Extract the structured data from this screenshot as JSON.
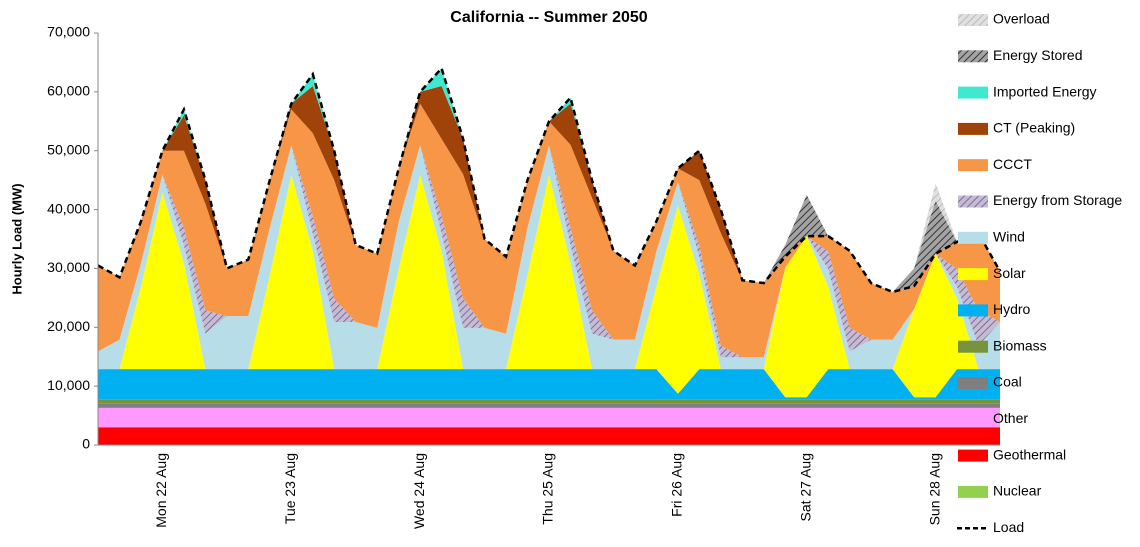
{
  "chart_data": {
    "type": "stacked_area",
    "title": "California -- Summer 2050",
    "y_label": "Hourly Load (MW)",
    "categories": [
      null,
      null,
      null,
      "Mon 22 Aug",
      null,
      null,
      null,
      null,
      null,
      "Tue 23 Aug",
      null,
      null,
      null,
      null,
      null,
      "Wed 24 Aug",
      null,
      null,
      null,
      null,
      null,
      "Thu 25 Aug",
      null,
      null,
      null,
      null,
      null,
      "Fri 26 Aug",
      null,
      null,
      null,
      null,
      null,
      "Sat 27 Aug",
      null,
      null,
      null,
      null,
      null,
      "Sun 28 Aug",
      null,
      null,
      null
    ],
    "ylim": [
      0,
      70000
    ],
    "yticks": [
      0,
      {
        "value": 10000,
        "label": "10,000"
      },
      {
        "value": 20000,
        "label": "20,000"
      },
      {
        "value": 30000,
        "label": "30,000"
      },
      {
        "value": 40000,
        "label": "40,000"
      },
      {
        "value": 50000,
        "label": "50,000"
      },
      {
        "value": 60000,
        "label": "60,000"
      },
      {
        "value": 70000,
        "label": "70,000"
      }
    ],
    "series": [
      {
        "name": "Nuclear",
        "color": "#92d050",
        "values": [
          0,
          0,
          0,
          0,
          0,
          0,
          0,
          0,
          0,
          0,
          0,
          0,
          0,
          0,
          0,
          0,
          0,
          0,
          0,
          0,
          0,
          0,
          0,
          0,
          0,
          0,
          0,
          0,
          0,
          0,
          0,
          0,
          0,
          0,
          0,
          0,
          0,
          0,
          0,
          0,
          0,
          0,
          0
        ]
      },
      {
        "name": "Geothermal",
        "color": "#ff0000",
        "values": [
          3000,
          3000,
          3000,
          3000,
          3000,
          3000,
          3000,
          3000,
          3000,
          3000,
          3000,
          3000,
          3000,
          3000,
          3000,
          3000,
          3000,
          3000,
          3000,
          3000,
          3000,
          3000,
          3000,
          3000,
          3000,
          3000,
          3000,
          3000,
          3000,
          3000,
          3000,
          3000,
          3000,
          3000,
          3000,
          3000,
          3000,
          3000,
          3000,
          3000,
          3000,
          3000,
          3000
        ]
      },
      {
        "name": "Other",
        "color": "#ff99ff",
        "values": [
          3300,
          3300,
          3300,
          3300,
          3300,
          3300,
          3300,
          3300,
          3300,
          3300,
          3300,
          3300,
          3300,
          3300,
          3300,
          3300,
          3300,
          3300,
          3300,
          3300,
          3300,
          3300,
          3300,
          3300,
          3300,
          3300,
          3300,
          3300,
          3300,
          3300,
          3300,
          3300,
          3300,
          3300,
          3300,
          3300,
          3300,
          3300,
          3300,
          3300,
          3300,
          3300,
          3300
        ]
      },
      {
        "name": "Coal",
        "color": "#7f7f7f",
        "values": [
          700,
          700,
          700,
          700,
          700,
          700,
          700,
          700,
          700,
          700,
          700,
          700,
          700,
          700,
          700,
          700,
          700,
          700,
          700,
          700,
          700,
          700,
          700,
          700,
          700,
          700,
          700,
          700,
          700,
          700,
          700,
          700,
          700,
          700,
          700,
          700,
          700,
          700,
          700,
          700,
          700,
          700,
          700
        ]
      },
      {
        "name": "Biomass",
        "color": "#77933c",
        "values": [
          700,
          700,
          700,
          700,
          700,
          700,
          700,
          700,
          700,
          700,
          700,
          700,
          700,
          700,
          700,
          700,
          700,
          700,
          700,
          700,
          700,
          700,
          700,
          700,
          700,
          700,
          700,
          700,
          700,
          700,
          700,
          700,
          700,
          700,
          700,
          700,
          700,
          700,
          700,
          700,
          700,
          700,
          700
        ]
      },
      {
        "name": "Hydro",
        "color": "#00b0f0",
        "values": [
          5200,
          5200,
          5200,
          5200,
          5200,
          5200,
          5200,
          5200,
          5200,
          5200,
          5200,
          5200,
          5200,
          5200,
          5200,
          5200,
          5200,
          5200,
          5200,
          5200,
          5200,
          5200,
          5200,
          5200,
          5200,
          5200,
          5200,
          1000,
          5200,
          5200,
          5200,
          5200,
          400,
          400,
          5200,
          5200,
          5200,
          5200,
          400,
          400,
          5200,
          5200,
          5200
        ]
      },
      {
        "name": "Solar",
        "color": "#ffff00",
        "values": [
          0,
          0,
          14000,
          30000,
          18000,
          0,
          0,
          0,
          16000,
          33000,
          20000,
          0,
          0,
          0,
          17000,
          33000,
          20000,
          0,
          0,
          0,
          16000,
          33000,
          18000,
          0,
          0,
          0,
          14000,
          32000,
          16000,
          0,
          0,
          0,
          22000,
          27400,
          14000,
          0,
          0,
          0,
          15000,
          24400,
          12000,
          0,
          0
        ]
      },
      {
        "name": "Wind",
        "color": "#b7dde8",
        "values": [
          3000,
          5000,
          4000,
          3000,
          3000,
          6000,
          9000,
          9000,
          8000,
          5000,
          3000,
          8000,
          8000,
          7000,
          8000,
          5000,
          3000,
          7000,
          7000,
          6000,
          8000,
          5000,
          3000,
          6000,
          5000,
          5000,
          6000,
          4000,
          3000,
          2000,
          2000,
          2000,
          0,
          0,
          3000,
          3000,
          5000,
          5000,
          0,
          0,
          2000,
          4000,
          8000
        ]
      },
      {
        "name": "Energy from Storage",
        "color": "#7f6a9f",
        "hatch": true,
        "values": [
          0,
          0,
          0,
          0,
          3000,
          4000,
          0,
          0,
          0,
          0,
          3000,
          4000,
          0,
          0,
          0,
          0,
          3000,
          5000,
          0,
          0,
          0,
          0,
          3000,
          4000,
          0,
          0,
          0,
          0,
          2000,
          2000,
          0,
          0,
          0,
          0,
          3000,
          4000,
          0,
          0,
          0,
          0,
          3000,
          6000,
          0
        ]
      },
      {
        "name": "CCCT",
        "color": "#f79646",
        "values": [
          14600,
          10600,
          7100,
          4100,
          13100,
          18100,
          8100,
          9600,
          8100,
          6100,
          14100,
          20100,
          13100,
          12600,
          9100,
          7100,
          13100,
          21100,
          15100,
          13100,
          8100,
          4100,
          14100,
          19100,
          15100,
          12600,
          5100,
          2300,
          11100,
          19100,
          13100,
          12600,
          1900,
          0,
          2600,
          13100,
          9600,
          8100,
          3900,
          0,
          4600,
          13100,
          8600
        ]
      },
      {
        "name": "CT (Peaking)",
        "color": "#a0430a",
        "values": [
          0,
          0,
          0,
          0,
          6000,
          4000,
          0,
          0,
          0,
          1000,
          8000,
          5000,
          0,
          0,
          0,
          2000,
          9000,
          6000,
          0,
          0,
          0,
          0,
          7000,
          3000,
          0,
          0,
          0,
          0,
          5000,
          4000,
          0,
          0,
          0,
          0,
          0,
          0,
          0,
          0,
          0,
          0,
          0,
          0,
          0
        ]
      },
      {
        "name": "Imported Energy",
        "color": "#40e8d0",
        "values": [
          0,
          0,
          0,
          0,
          1000,
          0,
          0,
          0,
          0,
          0,
          2000,
          0,
          0,
          0,
          0,
          0,
          3000,
          0,
          0,
          0,
          0,
          0,
          1000,
          0,
          0,
          0,
          0,
          0,
          0,
          0,
          0,
          0,
          0,
          0,
          0,
          0,
          0,
          0,
          0,
          0,
          0,
          0,
          0
        ]
      },
      {
        "name": "Energy Stored",
        "color": "#333333",
        "hatch": true,
        "values": [
          0,
          0,
          0,
          0,
          0,
          0,
          0,
          0,
          0,
          0,
          0,
          0,
          0,
          0,
          0,
          0,
          0,
          0,
          0,
          0,
          0,
          0,
          0,
          0,
          0,
          0,
          0,
          0,
          0,
          0,
          0,
          0,
          2000,
          7000,
          0,
          0,
          0,
          0,
          3000,
          9000,
          0,
          0,
          0
        ]
      },
      {
        "name": "Overload",
        "color": "#bbbbbb",
        "hatch": true,
        "values": [
          0,
          0,
          0,
          0,
          0,
          0,
          0,
          0,
          0,
          0,
          0,
          0,
          0,
          0,
          0,
          0,
          0,
          0,
          0,
          0,
          0,
          0,
          0,
          0,
          0,
          0,
          0,
          0,
          0,
          0,
          0,
          0,
          0,
          0,
          0,
          0,
          0,
          0,
          0,
          3000,
          0,
          0,
          0
        ]
      }
    ],
    "load": {
      "name": "Load",
      "color": "#000000",
      "values": [
        30500,
        28500,
        38000,
        50000,
        57000,
        45000,
        30000,
        31500,
        45000,
        58000,
        63000,
        50000,
        34000,
        32500,
        47000,
        60000,
        64000,
        52000,
        35000,
        32000,
        45000,
        55000,
        59000,
        45000,
        33000,
        30500,
        38000,
        47000,
        50000,
        40000,
        28000,
        27500,
        32000,
        35500,
        35500,
        33000,
        27500,
        26000,
        27000,
        32500,
        34500,
        36000,
        29500
      ]
    }
  }
}
